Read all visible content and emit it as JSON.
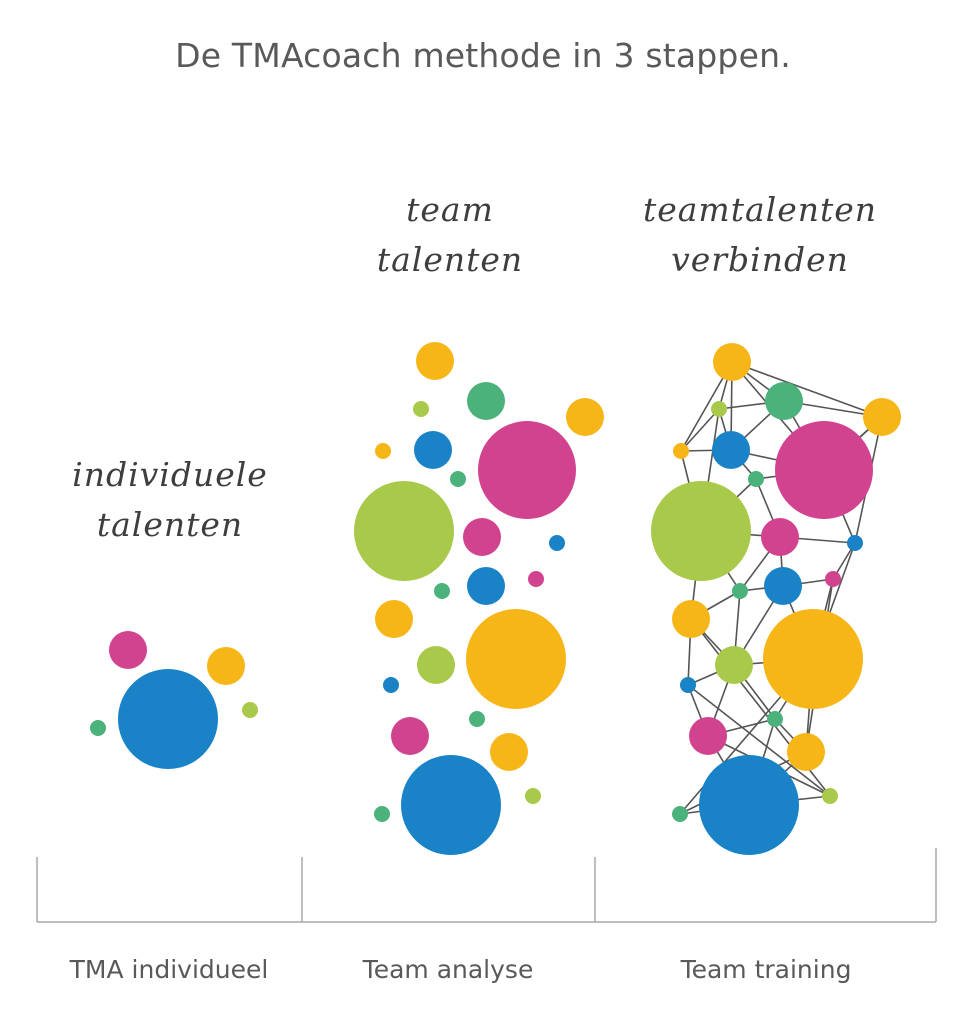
{
  "title": "De TMAcoach methode in 3 stappen.",
  "colors": {
    "blue": "#1a82c6",
    "magenta": "#d2438f",
    "yellow": "#f7b617",
    "lime": "#a9c94a",
    "green": "#4cb27b",
    "line": "#555555",
    "bracket": "#a7a9ac"
  },
  "handwritten": {
    "individual": [
      "individuele",
      "talenten"
    ],
    "team": [
      "team",
      "talenten"
    ],
    "connect": [
      "teamtalenten",
      "verbinden"
    ]
  },
  "steps": [
    {
      "label": "TMA individueel"
    },
    {
      "label": "Team analyse"
    },
    {
      "label": "Team training"
    }
  ]
}
